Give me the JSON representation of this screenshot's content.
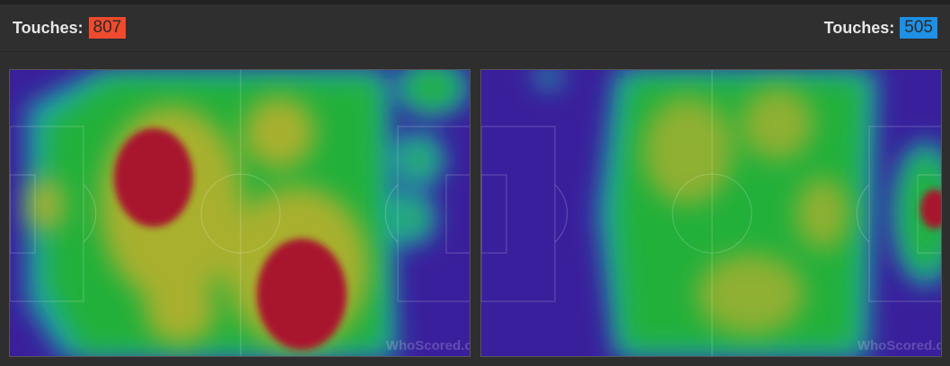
{
  "home": {
    "label": "Touches:",
    "value": "807",
    "color": "#f04a2e"
  },
  "away": {
    "label": "Touches:",
    "value": "505",
    "color": "#1e90e6"
  },
  "watermark": "WhoScored.com",
  "heatmap_colors": {
    "low": "#3a1f9c",
    "mid": "#22b03a",
    "high": "#b0b030",
    "peak": "#a8182e"
  }
}
